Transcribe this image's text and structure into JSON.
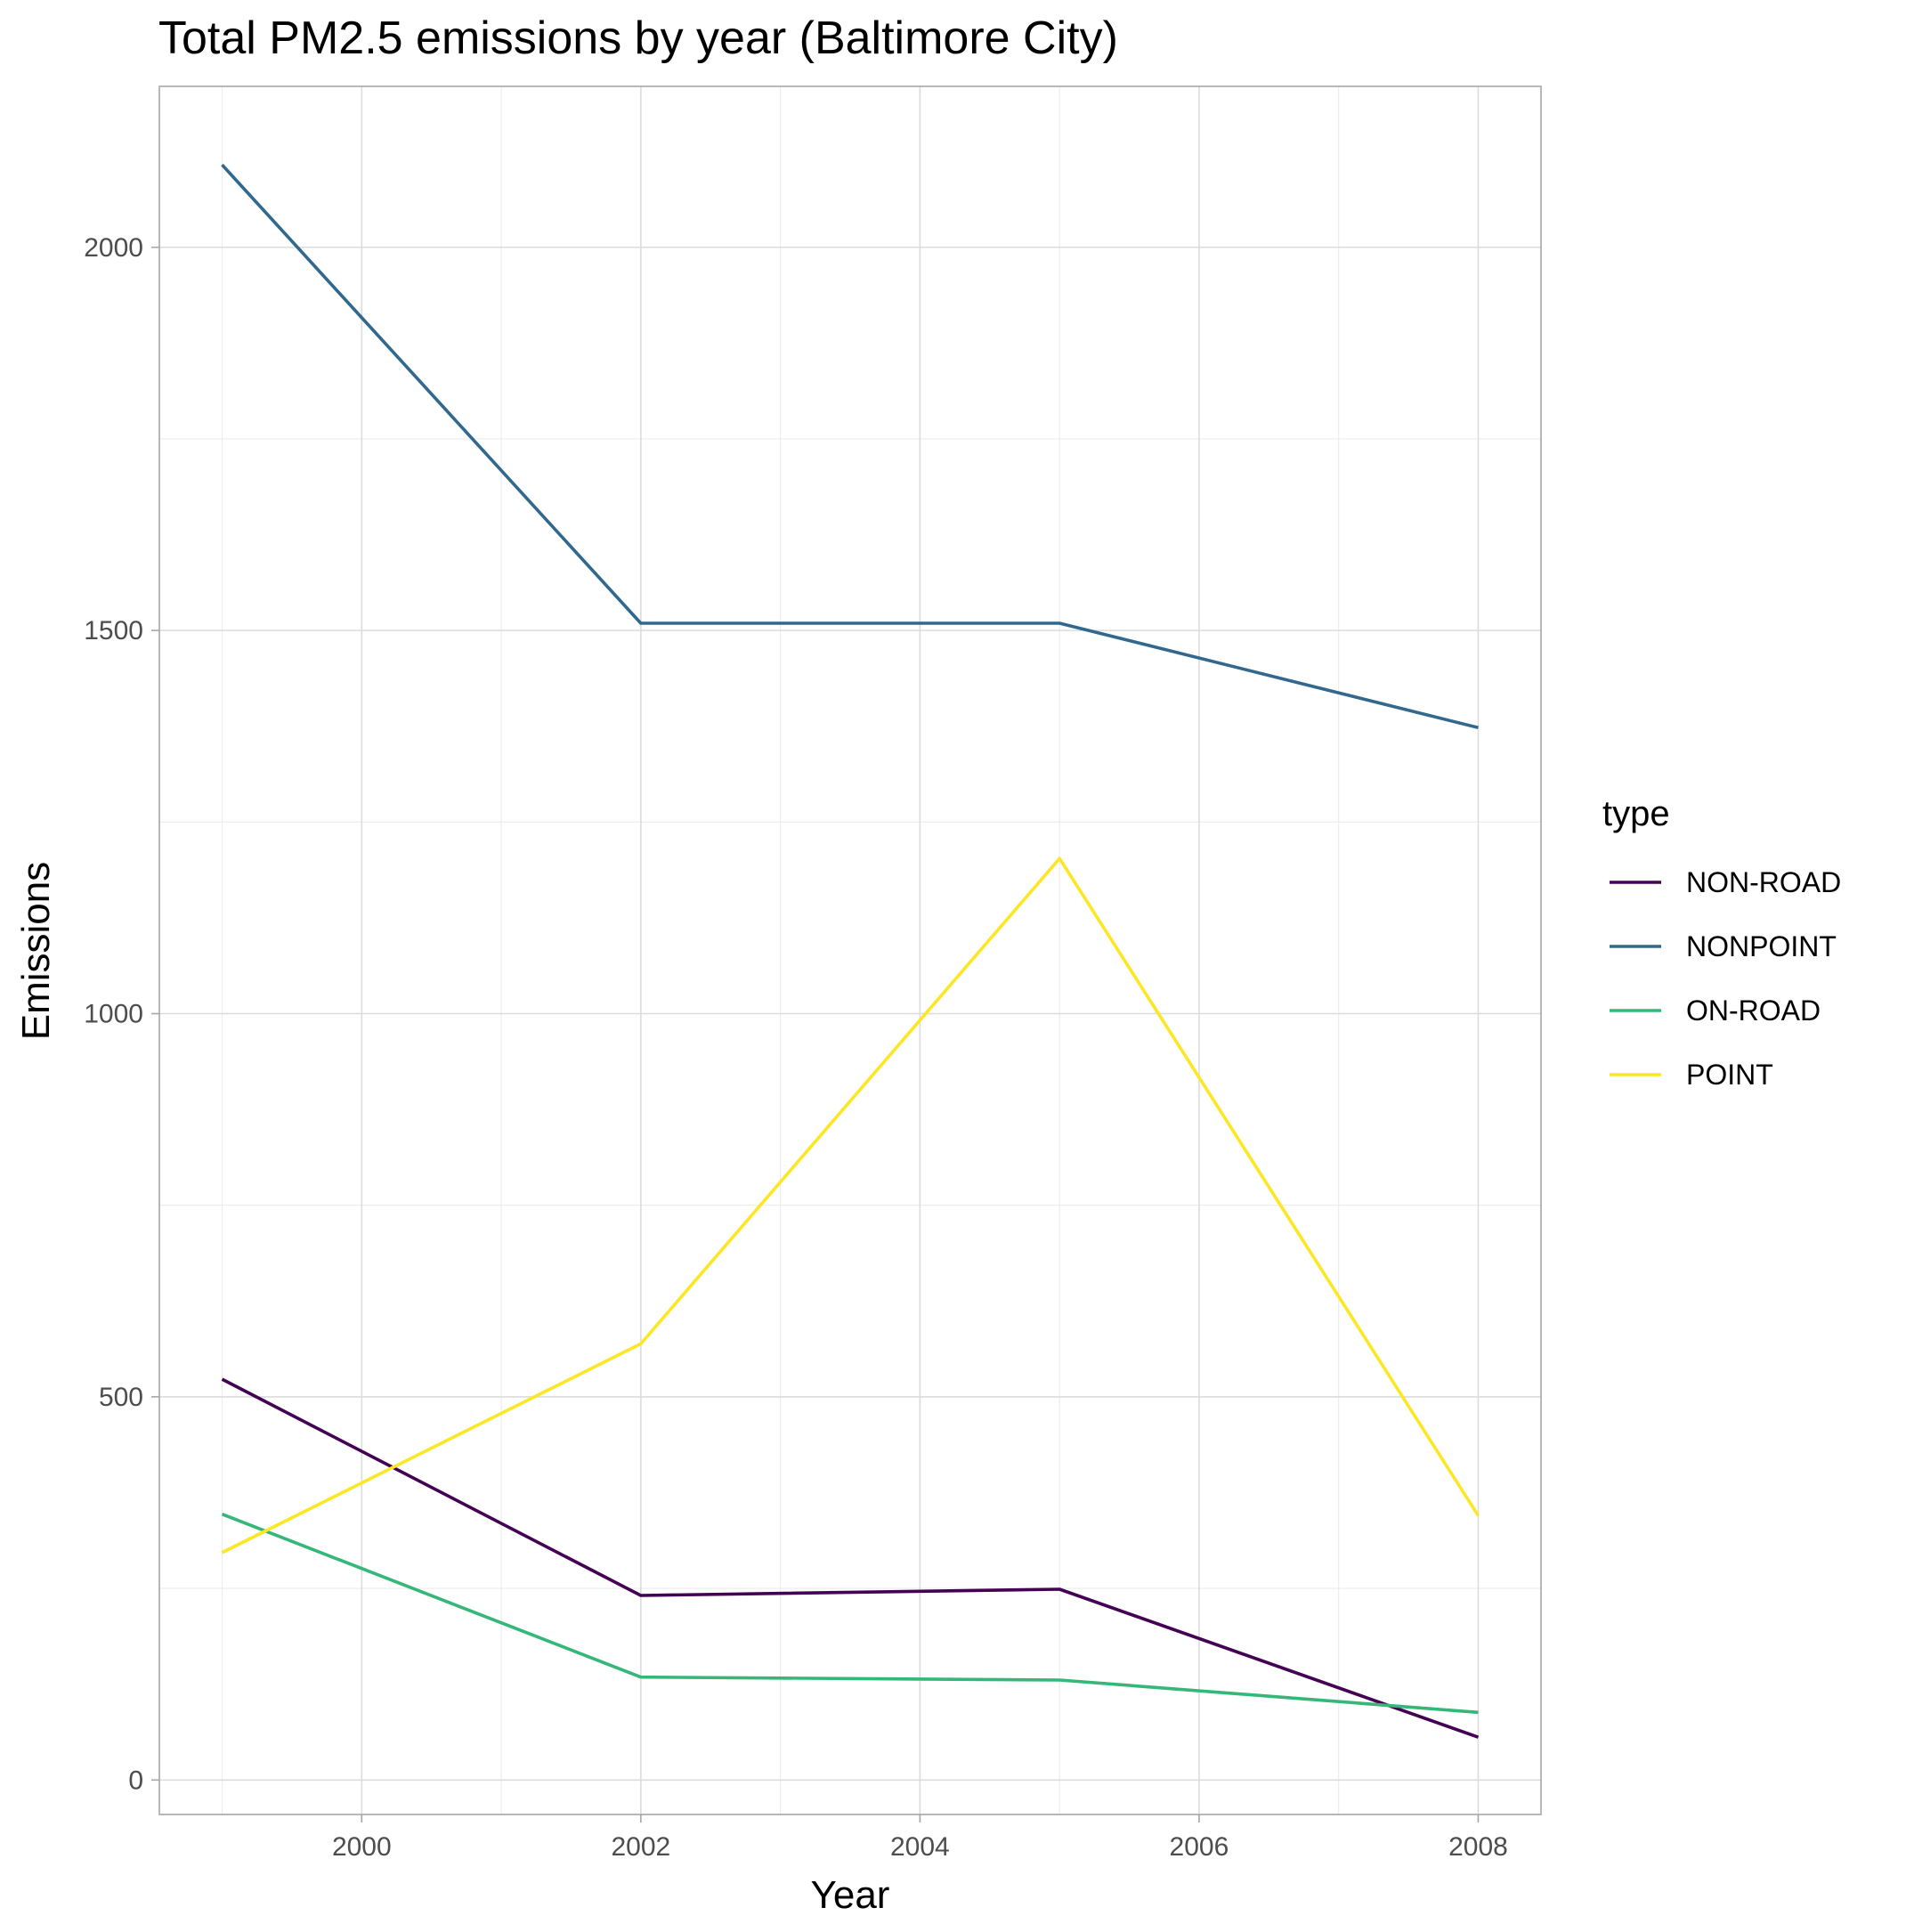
{
  "chart_data": {
    "type": "line",
    "title": "Total PM2.5 emissions by year (Baltimore City)",
    "xlabel": "Year",
    "ylabel": "Emissions",
    "x": [
      1999,
      2002,
      2005,
      2008
    ],
    "xlim": [
      1998.55,
      2008.45
    ],
    "ylim": [
      -45,
      2210
    ],
    "x_ticks": [
      2000,
      2002,
      2004,
      2006,
      2008
    ],
    "y_ticks": [
      0,
      500,
      1000,
      1500,
      2000
    ],
    "x_minor": [
      1999,
      2001,
      2003,
      2005,
      2007
    ],
    "y_minor": [
      250,
      750,
      1250,
      1750
    ],
    "grid": true,
    "legend": {
      "title": "type",
      "position": "right"
    },
    "series": [
      {
        "name": "NON-ROAD",
        "color": "#440154",
        "values": [
          522.94,
          240.85,
          248.93,
          55.82
        ]
      },
      {
        "name": "NONPOINT",
        "color": "#31688e",
        "values": [
          2107.63,
          1509.5,
          1509.5,
          1373.21
        ]
      },
      {
        "name": "ON-ROAD",
        "color": "#35b779",
        "values": [
          346.82,
          134.31,
          130.43,
          88.28
        ]
      },
      {
        "name": "POINT",
        "color": "#fde725",
        "values": [
          296.8,
          569.26,
          1202.49,
          344.98
        ]
      }
    ]
  }
}
